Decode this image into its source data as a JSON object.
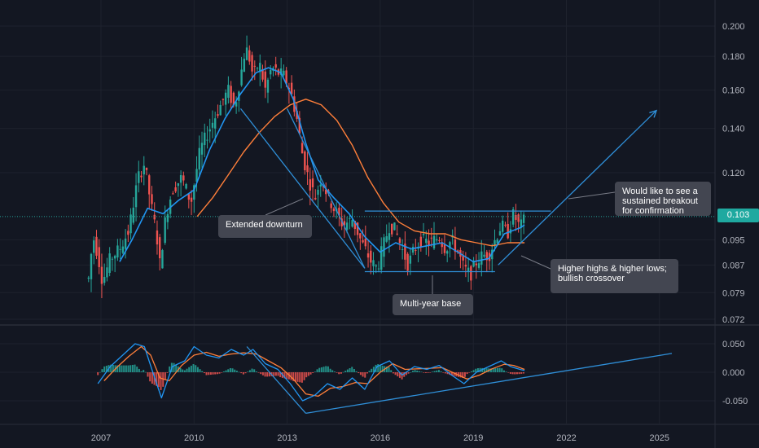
{
  "colors": {
    "background": "#131722",
    "grid": "#1e222d",
    "up": "#26a69a",
    "down": "#ef5350",
    "sma_fast": "#2196f3",
    "sma_slow": "#ff7f3a",
    "drawing": "#2f8fd8",
    "current_price": "#26a69a",
    "macd_line": "#2196f3",
    "signal_line": "#ff7f3a",
    "axis_text": "#b2b5be",
    "callout_bg": "#434651"
  },
  "chart_data": [
    {
      "type": "candlestick",
      "scale": "log",
      "x_ticks": [
        "2007",
        "2010",
        "2013",
        "2016",
        "2019",
        "2022",
        "2025"
      ],
      "y_ticks": [
        "0.200",
        "0.180",
        "0.160",
        "0.140",
        "0.120",
        "0.095",
        "0.087",
        "0.079",
        "0.072"
      ],
      "y_ticks_values": [
        0.2,
        0.18,
        0.16,
        0.14,
        0.12,
        0.095,
        0.087,
        0.079,
        0.072
      ],
      "ylim": [
        0.07,
        0.21
      ],
      "xlim": [
        2006.0,
        2027.0
      ],
      "current_price": "0.103",
      "current_price_value": 0.103,
      "price_path": [
        [
          2006.6,
          0.083
        ],
        [
          2006.75,
          0.096
        ],
        [
          2006.9,
          0.09
        ],
        [
          2007.05,
          0.082
        ],
        [
          2007.3,
          0.089
        ],
        [
          2007.6,
          0.092
        ],
        [
          2007.9,
          0.098
        ],
        [
          2008.2,
          0.118
        ],
        [
          2008.4,
          0.124
        ],
        [
          2008.6,
          0.108
        ],
        [
          2008.8,
          0.096
        ],
        [
          2008.9,
          0.087
        ],
        [
          2009.1,
          0.104
        ],
        [
          2009.3,
          0.113
        ],
        [
          2009.6,
          0.118
        ],
        [
          2009.9,
          0.108
        ],
        [
          2010.2,
          0.13
        ],
        [
          2010.5,
          0.14
        ],
        [
          2010.8,
          0.15
        ],
        [
          2011.1,
          0.16
        ],
        [
          2011.3,
          0.15
        ],
        [
          2011.5,
          0.168
        ],
        [
          2011.65,
          0.185
        ],
        [
          2011.75,
          0.182
        ],
        [
          2011.9,
          0.168
        ],
        [
          2012.1,
          0.176
        ],
        [
          2012.3,
          0.16
        ],
        [
          2012.5,
          0.173
        ],
        [
          2012.7,
          0.17
        ],
        [
          2012.9,
          0.168
        ],
        [
          2013.1,
          0.16
        ],
        [
          2013.3,
          0.146
        ],
        [
          2013.5,
          0.127
        ],
        [
          2013.7,
          0.117
        ],
        [
          2013.9,
          0.11
        ],
        [
          2014.1,
          0.118
        ],
        [
          2014.3,
          0.111
        ],
        [
          2014.5,
          0.106
        ],
        [
          2014.8,
          0.1
        ],
        [
          2015.1,
          0.102
        ],
        [
          2015.4,
          0.094
        ],
        [
          2015.7,
          0.088
        ],
        [
          2015.9,
          0.086
        ],
        [
          2016.1,
          0.093
        ],
        [
          2016.3,
          0.1
        ],
        [
          2016.5,
          0.098
        ],
        [
          2016.7,
          0.092
        ],
        [
          2016.9,
          0.087
        ],
        [
          2017.1,
          0.092
        ],
        [
          2017.3,
          0.095
        ],
        [
          2017.6,
          0.094
        ],
        [
          2017.9,
          0.096
        ],
        [
          2018.1,
          0.092
        ],
        [
          2018.3,
          0.095
        ],
        [
          2018.5,
          0.091
        ],
        [
          2018.7,
          0.086
        ],
        [
          2018.9,
          0.084
        ],
        [
          2019.1,
          0.088
        ],
        [
          2019.3,
          0.09
        ],
        [
          2019.5,
          0.09
        ],
        [
          2019.7,
          0.095
        ],
        [
          2019.9,
          0.1
        ],
        [
          2020.1,
          0.097
        ],
        [
          2020.3,
          0.104
        ],
        [
          2020.5,
          0.099
        ],
        [
          2020.65,
          0.102
        ]
      ],
      "sma_fast_path": [
        [
          2007.6,
          0.088
        ],
        [
          2008.0,
          0.095
        ],
        [
          2008.5,
          0.106
        ],
        [
          2009.0,
          0.104
        ],
        [
          2009.5,
          0.109
        ],
        [
          2010.0,
          0.113
        ],
        [
          2010.5,
          0.13
        ],
        [
          2011.0,
          0.145
        ],
        [
          2011.5,
          0.158
        ],
        [
          2012.0,
          0.17
        ],
        [
          2012.4,
          0.173
        ],
        [
          2012.8,
          0.17
        ],
        [
          2013.2,
          0.155
        ],
        [
          2013.6,
          0.133
        ],
        [
          2014.0,
          0.117
        ],
        [
          2014.5,
          0.11
        ],
        [
          2015.0,
          0.104
        ],
        [
          2015.5,
          0.096
        ],
        [
          2016.0,
          0.091
        ],
        [
          2016.5,
          0.094
        ],
        [
          2017.0,
          0.092
        ],
        [
          2017.5,
          0.093
        ],
        [
          2018.0,
          0.094
        ],
        [
          2018.5,
          0.091
        ],
        [
          2019.0,
          0.088
        ],
        [
          2019.5,
          0.089
        ],
        [
          2020.0,
          0.097
        ],
        [
          2020.5,
          0.099
        ],
        [
          2020.65,
          0.1
        ]
      ],
      "sma_slow_path": [
        [
          2010.1,
          0.103
        ],
        [
          2010.6,
          0.11
        ],
        [
          2011.1,
          0.119
        ],
        [
          2011.6,
          0.129
        ],
        [
          2012.1,
          0.138
        ],
        [
          2012.6,
          0.146
        ],
        [
          2013.1,
          0.152
        ],
        [
          2013.6,
          0.155
        ],
        [
          2014.1,
          0.152
        ],
        [
          2014.6,
          0.144
        ],
        [
          2015.1,
          0.132
        ],
        [
          2015.6,
          0.118
        ],
        [
          2016.1,
          0.108
        ],
        [
          2016.6,
          0.101
        ],
        [
          2017.1,
          0.098
        ],
        [
          2017.6,
          0.097
        ],
        [
          2018.1,
          0.097
        ],
        [
          2018.6,
          0.095
        ],
        [
          2019.1,
          0.094
        ],
        [
          2019.6,
          0.093
        ],
        [
          2020.1,
          0.094
        ],
        [
          2020.65,
          0.094
        ]
      ],
      "drawings": [
        [
          [
            2011.5,
            0.15
          ],
          [
            2015.5,
            0.086
          ]
        ],
        [
          [
            2013.0,
            0.15
          ],
          [
            2015.5,
            0.086
          ]
        ],
        [
          [
            2015.5,
            0.085
          ],
          [
            2019.7,
            0.085
          ]
        ],
        [
          [
            2015.5,
            0.105
          ],
          [
            2021.5,
            0.105
          ]
        ],
        [
          [
            2019.8,
            0.087
          ],
          [
            2024.9,
            0.149
          ]
        ]
      ]
    },
    {
      "type": "line",
      "indicator": "macd",
      "y_ticks": [
        "0.050",
        "0.000",
        "-0.050"
      ],
      "y_ticks_values": [
        0.05,
        0.0,
        -0.05
      ],
      "ylim": [
        -0.075,
        0.072
      ],
      "macd_path": [
        [
          2006.9,
          -0.02
        ],
        [
          2007.3,
          0.01
        ],
        [
          2007.7,
          0.03
        ],
        [
          2008.1,
          0.05
        ],
        [
          2008.4,
          0.045
        ],
        [
          2008.7,
          -0.005
        ],
        [
          2008.95,
          -0.045
        ],
        [
          2009.3,
          0.01
        ],
        [
          2009.7,
          0.02
        ],
        [
          2010.0,
          0.045
        ],
        [
          2010.4,
          0.03
        ],
        [
          2010.8,
          0.025
        ],
        [
          2011.2,
          0.04
        ],
        [
          2011.6,
          0.03
        ],
        [
          2011.9,
          0.04
        ],
        [
          2012.3,
          0.015
        ],
        [
          2012.7,
          0.005
        ],
        [
          2013.1,
          -0.02
        ],
        [
          2013.5,
          -0.05
        ],
        [
          2013.9,
          -0.04
        ],
        [
          2014.3,
          -0.02
        ],
        [
          2014.7,
          -0.03
        ],
        [
          2015.1,
          -0.01
        ],
        [
          2015.5,
          -0.03
        ],
        [
          2015.9,
          0.01
        ],
        [
          2016.3,
          0.02
        ],
        [
          2016.7,
          -0.005
        ],
        [
          2017.1,
          0.01
        ],
        [
          2017.5,
          0.005
        ],
        [
          2017.9,
          0.012
        ],
        [
          2018.3,
          -0.005
        ],
        [
          2018.7,
          -0.02
        ],
        [
          2019.1,
          0.0
        ],
        [
          2019.5,
          0.01
        ],
        [
          2019.9,
          0.02
        ],
        [
          2020.2,
          0.01
        ],
        [
          2020.5,
          0.005
        ],
        [
          2020.65,
          0.003
        ]
      ],
      "signal_path": [
        [
          2007.1,
          -0.015
        ],
        [
          2007.5,
          0.008
        ],
        [
          2007.9,
          0.028
        ],
        [
          2008.3,
          0.045
        ],
        [
          2008.6,
          0.03
        ],
        [
          2008.9,
          -0.01
        ],
        [
          2009.2,
          -0.015
        ],
        [
          2009.6,
          0.012
        ],
        [
          2010.0,
          0.03
        ],
        [
          2010.4,
          0.035
        ],
        [
          2010.8,
          0.028
        ],
        [
          2011.2,
          0.032
        ],
        [
          2011.6,
          0.034
        ],
        [
          2012.0,
          0.032
        ],
        [
          2012.4,
          0.02
        ],
        [
          2012.8,
          0.008
        ],
        [
          2013.2,
          -0.012
        ],
        [
          2013.6,
          -0.038
        ],
        [
          2014.0,
          -0.042
        ],
        [
          2014.4,
          -0.028
        ],
        [
          2014.8,
          -0.025
        ],
        [
          2015.2,
          -0.018
        ],
        [
          2015.6,
          -0.02
        ],
        [
          2016.0,
          0.0
        ],
        [
          2016.4,
          0.015
        ],
        [
          2016.8,
          0.005
        ],
        [
          2017.2,
          0.006
        ],
        [
          2017.6,
          0.007
        ],
        [
          2018.0,
          0.008
        ],
        [
          2018.4,
          -0.002
        ],
        [
          2018.8,
          -0.012
        ],
        [
          2019.2,
          -0.005
        ],
        [
          2019.6,
          0.006
        ],
        [
          2020.0,
          0.014
        ],
        [
          2020.3,
          0.012
        ],
        [
          2020.65,
          0.005
        ]
      ],
      "drawings": [
        [
          [
            2011.7,
            0.045
          ],
          [
            2013.6,
            -0.072
          ]
        ],
        [
          [
            2013.6,
            -0.072
          ],
          [
            2025.4,
            0.033
          ]
        ]
      ]
    }
  ],
  "annotations": {
    "downturn": "Extended downturn",
    "base": "Multi-year base",
    "breakout": "Would like to see a\nsustained breakout\nfor confirmation",
    "crossover": "Higher highs & higher lows;\nbullish crossover"
  }
}
